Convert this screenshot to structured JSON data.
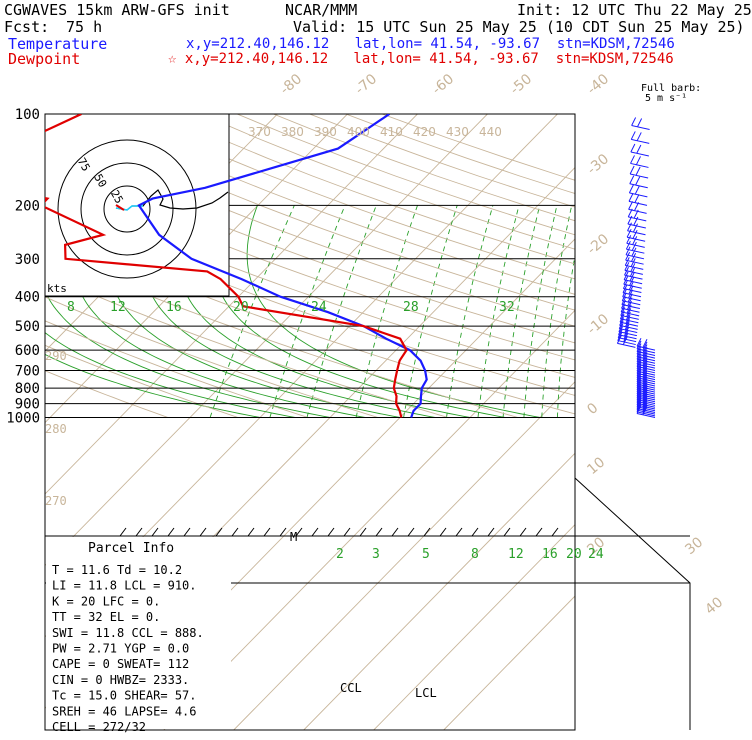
{
  "header": {
    "model": "CGWAVES 15km ARW-GFS init",
    "org": "NCAR/MMM",
    "init": "Init: 12 UTC Thu 22 May 25",
    "fcst_label": "Fcst:",
    "fcst_value": "75 h",
    "valid": "Valid: 15 UTC Sun 25 May 25 (10 CDT Sun 25 May 25)",
    "temp_label": "Temperature",
    "temp_loc": "x,y=212.40,146.12   lat,lon= 41.54, -93.67  stn=KDSM,72546",
    "dew_label": "Dewpoint",
    "dew_loc": "☆ x,y=212.40,146.12   lat,lon= 41.54, -93.67  stn=KDSM,72546",
    "barb_note_1": "Full barb:",
    "barb_note_2": "5 m s⁻¹"
  },
  "colors": {
    "temperature": "#1a1aff",
    "dewpoint": "#e00000",
    "mixing_ratio": "#2aa02a",
    "isotherm": "#c8b59a",
    "grid": "#000000"
  },
  "chart_data": {
    "type": "line",
    "chart_kind": "skew-T log-P sounding",
    "ylabel": "",
    "pressure_levels": [
      100,
      200,
      300,
      400,
      500,
      600,
      700,
      800,
      900,
      1000
    ],
    "isotherm_labels": [
      -80,
      -70,
      -60,
      -50,
      -40,
      -30,
      -20,
      -10,
      0,
      10,
      20,
      30,
      40
    ],
    "theta_labels": [
      370,
      380,
      390,
      400,
      410,
      420,
      430,
      440
    ],
    "theta_labels_lower": [
      290,
      280,
      270
    ],
    "mixing_ratio_labels_upper": [
      8,
      12,
      16,
      20,
      24,
      28,
      32
    ],
    "mixing_ratio_labels_lower": [
      2,
      3,
      5,
      8,
      12,
      16,
      20,
      24
    ],
    "series": [
      {
        "name": "Temperature",
        "points": [
          [
            100,
            -34
          ],
          [
            130,
            -36.5
          ],
          [
            150,
            -43
          ],
          [
            175,
            -50
          ],
          [
            190,
            -56
          ],
          [
            200,
            -57
          ],
          [
            250,
            -50
          ],
          [
            300,
            -42
          ],
          [
            350,
            -32
          ],
          [
            400,
            -24
          ],
          [
            450,
            -15
          ],
          [
            500,
            -8
          ],
          [
            550,
            -3
          ],
          [
            600,
            2
          ],
          [
            650,
            5
          ],
          [
            700,
            7
          ],
          [
            750,
            8.5
          ],
          [
            800,
            9
          ],
          [
            850,
            10
          ],
          [
            900,
            11
          ],
          [
            950,
            11
          ],
          [
            1000,
            11.6
          ]
        ]
      },
      {
        "name": "Dewpoint",
        "points": [
          [
            100,
            -78
          ],
          [
            120,
            -82
          ],
          [
            150,
            -80
          ],
          [
            175,
            -80
          ],
          [
            190,
            -71
          ],
          [
            200,
            -71
          ],
          [
            250,
            -58
          ],
          [
            270,
            -62
          ],
          [
            300,
            -60
          ],
          [
            330,
            -38
          ],
          [
            350,
            -35
          ],
          [
            400,
            -30
          ],
          [
            430,
            -28
          ],
          [
            500,
            -8
          ],
          [
            550,
            -1
          ],
          [
            600,
            1.5
          ],
          [
            650,
            2
          ],
          [
            700,
            3
          ],
          [
            750,
            4
          ],
          [
            800,
            5
          ],
          [
            850,
            6.5
          ],
          [
            900,
            7.5
          ],
          [
            950,
            9
          ],
          [
            1000,
            10.2
          ]
        ]
      }
    ],
    "annotations": [
      {
        "text": "M",
        "pressure": 500
      },
      {
        "text": "CCL",
        "pressure": 888
      },
      {
        "text": "LCL",
        "pressure": 910
      }
    ],
    "hodograph": {
      "rings": [
        "25",
        "50",
        "75"
      ],
      "units_label": "kts"
    },
    "wind_barbs_column": "right"
  },
  "parcel_info": {
    "title": "Parcel Info",
    "rows": [
      "T  =   11.6 Td =  10.2",
      "LI =   11.8 LCL =  910.",
      "K  =     20 LFC =    0.",
      "TT =     32 EL  =    0.",
      "SWI =  11.8 CCL =  888.",
      "PW =   2.71 YGP =   0.0",
      "CAPE =    0 SWEAT=  112",
      "CIN =     0 HWBZ= 2333.",
      "Tc =   15.0 SHEAR=  57.",
      "SREH =   46 LAPSE=  4.6",
      "CELL = 272/32"
    ]
  }
}
